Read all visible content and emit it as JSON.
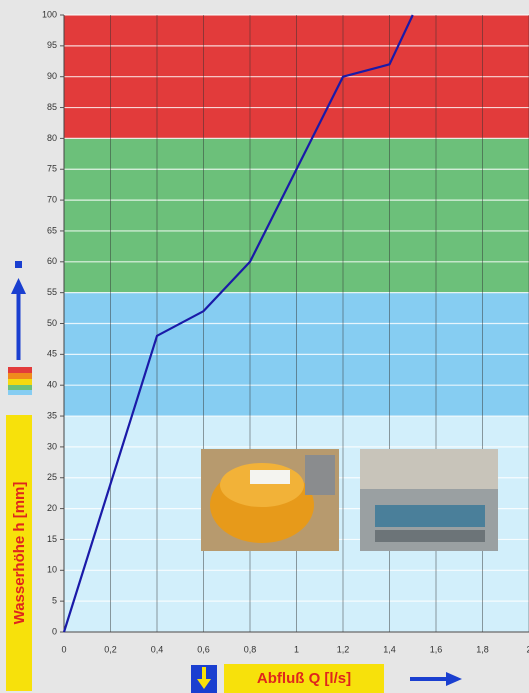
{
  "chart_data": {
    "type": "line",
    "x": [
      0,
      0.4,
      0.6,
      0.8,
      1.2,
      1.4,
      1.5
    ],
    "series": [
      {
        "color": "#1a1aa8",
        "values": [
          0,
          48,
          52,
          60,
          90,
          92,
          100
        ]
      }
    ],
    "xlim": [
      0,
      2
    ],
    "ylim": [
      0,
      100
    ],
    "xticks": [
      0,
      {
        "value": 0.2,
        "label": "0,2"
      },
      {
        "value": 0.4,
        "label": "0,4"
      },
      {
        "value": 0.6,
        "label": "0,6"
      },
      {
        "value": 0.8,
        "label": "0,8"
      },
      1,
      {
        "value": 1.2,
        "label": "1,2"
      },
      {
        "value": 1.4,
        "label": "1,4"
      },
      {
        "value": 1.6,
        "label": "1,6"
      },
      {
        "value": 1.8,
        "label": "1,8"
      },
      2
    ],
    "yticks": [
      0,
      5,
      10,
      15,
      20,
      25,
      30,
      35,
      40,
      45,
      50,
      55,
      60,
      65,
      70,
      75,
      80,
      85,
      90,
      95,
      100
    ],
    "bands": [
      {
        "from": 80,
        "to": 100,
        "color": "#e23b3b"
      },
      {
        "from": 55,
        "to": 80,
        "color": "#6cc07a"
      },
      {
        "from": 35,
        "to": 55,
        "color": "#86cdf2"
      },
      {
        "from": 0,
        "to": 35,
        "color": "#d2effb"
      }
    ],
    "grid": true,
    "xlabel": "Abfluß Q [l/s]",
    "ylabel": "Wasserhöhe h [mm]"
  }
}
